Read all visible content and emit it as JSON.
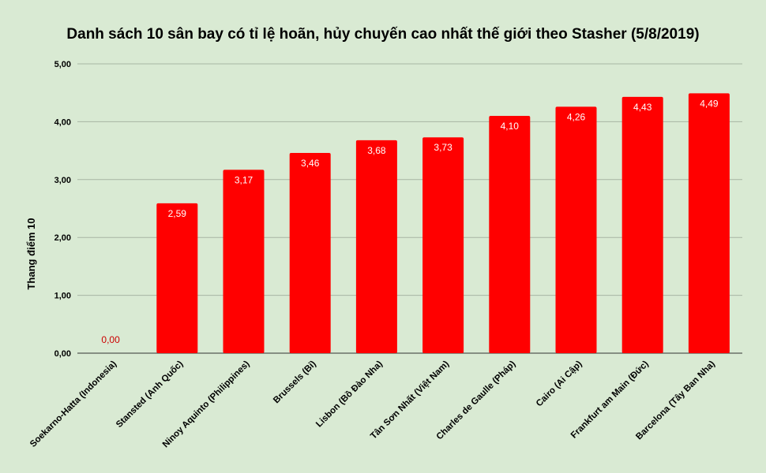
{
  "chart_data": {
    "type": "bar",
    "title": "Danh sách 10 sân bay có tỉ lệ hoãn, hủy chuyến cao nhất thế giới theo Stasher (5/8/2019)",
    "xlabel": "",
    "ylabel": "Thang điểm 10",
    "ylim": [
      0,
      5
    ],
    "yticks": [
      "0,00",
      "1,00",
      "2,00",
      "3,00",
      "4,00",
      "5,00"
    ],
    "grid": true,
    "legend": "none",
    "bar_color": "#ff0000",
    "zero_label_color": "#cc0000",
    "categories": [
      "Soekarno-Hatta (Indonesia)",
      "Stansted (Anh Quốc)",
      "Ninoy Aquinto (Philippines)",
      "Brussels (Bỉ)",
      "Lisbon (Bồ Đào Nha)",
      "Tân Sơn Nhất (Việt Nam)",
      "Charles de Gaulle (Pháp)",
      "Cairo (Ai Cập)",
      "Frankfurt am Main (Đức)",
      "Barcelona (Tây Ban Nha)"
    ],
    "values": [
      0.0,
      2.59,
      3.17,
      3.46,
      3.68,
      3.73,
      4.1,
      4.26,
      4.43,
      4.49
    ],
    "value_labels": [
      "0,00",
      "2,59",
      "3,17",
      "3,46",
      "3,68",
      "3,73",
      "4,10",
      "4,26",
      "4,43",
      "4,49"
    ]
  }
}
